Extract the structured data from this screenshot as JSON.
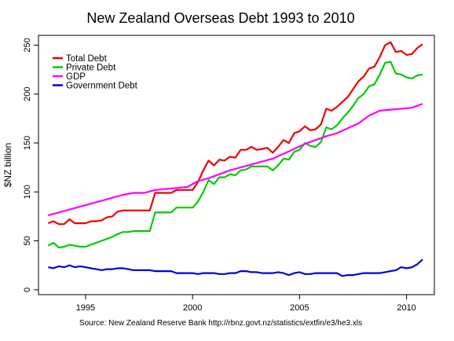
{
  "chart_data": {
    "type": "line",
    "title": "New Zealand Overseas Debt 1993 to 2010",
    "xlabel": "",
    "ylabel": "$NZ billion",
    "xlim": [
      1992.8,
      2011.3
    ],
    "ylim": [
      -5,
      260
    ],
    "xticks": [
      1995,
      2000,
      2005,
      2010
    ],
    "yticks": [
      0,
      50,
      100,
      150,
      200,
      250
    ],
    "grid": false,
    "legend_position": "top-left",
    "source": "Source: New Zealand Reserve Bank http://rbnz.govt.nz/statistics/extfin/e3/he3.xls",
    "series": [
      {
        "name": "Total Debt",
        "color": "#ee0000",
        "x": [
          1993.25,
          1993.5,
          1993.75,
          1994.0,
          1994.25,
          1994.5,
          1994.75,
          1995.0,
          1995.25,
          1995.5,
          1995.75,
          1996.0,
          1996.25,
          1996.5,
          1996.75,
          1997.0,
          1997.25,
          1997.5,
          1997.75,
          1998.0,
          1998.25,
          1998.5,
          1998.75,
          1999.0,
          1999.25,
          1999.5,
          1999.75,
          2000.0,
          2000.25,
          2000.5,
          2000.75,
          2001.0,
          2001.25,
          2001.5,
          2001.75,
          2002.0,
          2002.25,
          2002.5,
          2002.75,
          2003.0,
          2003.25,
          2003.5,
          2003.75,
          2004.0,
          2004.25,
          2004.5,
          2004.75,
          2005.0,
          2005.25,
          2005.5,
          2005.75,
          2006.0,
          2006.25,
          2006.5,
          2006.75,
          2007.0,
          2007.25,
          2007.5,
          2007.75,
          2008.0,
          2008.25,
          2008.5,
          2008.75,
          2009.0,
          2009.25,
          2009.5,
          2009.75,
          2010.0,
          2010.25,
          2010.5,
          2010.75
        ],
        "values": [
          68,
          70,
          67,
          67,
          72,
          68,
          68,
          68,
          70,
          70,
          71,
          74,
          75,
          80,
          81,
          81,
          81,
          81,
          81,
          81,
          99,
          99,
          99,
          99,
          102,
          102,
          102,
          102,
          110,
          122,
          132,
          127,
          133,
          132,
          136,
          135,
          143,
          143,
          146,
          143,
          144,
          145,
          140,
          146,
          153,
          150,
          160,
          162,
          167,
          163,
          164,
          169,
          185,
          183,
          187,
          192,
          197,
          205,
          213,
          218,
          226,
          228,
          238,
          250,
          253,
          243,
          244,
          240,
          241,
          247,
          251
        ]
      },
      {
        "name": "Private Debt",
        "color": "#00cc00",
        "x": [
          1993.25,
          1993.5,
          1993.75,
          1994.0,
          1994.25,
          1994.5,
          1994.75,
          1995.0,
          1995.25,
          1995.5,
          1995.75,
          1996.0,
          1996.25,
          1996.5,
          1996.75,
          1997.0,
          1997.25,
          1997.5,
          1997.75,
          1998.0,
          1998.25,
          1998.5,
          1998.75,
          1999.0,
          1999.25,
          1999.5,
          1999.75,
          2000.0,
          2000.25,
          2000.5,
          2000.75,
          2001.0,
          2001.25,
          2001.5,
          2001.75,
          2002.0,
          2002.25,
          2002.5,
          2002.75,
          2003.0,
          2003.25,
          2003.5,
          2003.75,
          2004.0,
          2004.25,
          2004.5,
          2004.75,
          2005.0,
          2005.25,
          2005.5,
          2005.75,
          2006.0,
          2006.25,
          2006.5,
          2006.75,
          2007.0,
          2007.25,
          2007.5,
          2007.75,
          2008.0,
          2008.25,
          2008.5,
          2008.75,
          2009.0,
          2009.25,
          2009.5,
          2009.75,
          2010.0,
          2010.25,
          2010.5,
          2010.75
        ],
        "values": [
          45,
          48,
          43,
          44,
          46,
          45,
          44,
          44,
          46,
          48,
          50,
          52,
          54,
          57,
          59,
          59,
          60,
          60,
          60,
          60,
          79,
          79,
          79,
          79,
          84,
          84,
          84,
          84,
          90,
          100,
          112,
          108,
          115,
          115,
          118,
          117,
          122,
          123,
          126,
          126,
          126,
          126,
          122,
          127,
          134,
          133,
          141,
          143,
          150,
          147,
          146,
          151,
          166,
          164,
          168,
          175,
          181,
          188,
          196,
          200,
          208,
          210,
          220,
          232,
          233,
          221,
          220,
          217,
          216,
          219,
          220
        ]
      },
      {
        "name": "GDP",
        "color": "#ff00ff",
        "x": [
          1993.25,
          1993.75,
          1994.25,
          1994.75,
          1995.25,
          1995.75,
          1996.25,
          1996.75,
          1997.25,
          1997.75,
          1998.25,
          1998.75,
          1999.25,
          1999.75,
          2000.25,
          2000.75,
          2001.25,
          2001.75,
          2002.25,
          2002.75,
          2003.25,
          2003.75,
          2004.25,
          2004.75,
          2005.25,
          2005.75,
          2006.25,
          2006.75,
          2007.25,
          2007.75,
          2008.25,
          2008.75,
          2009.25,
          2009.75,
          2010.25,
          2010.75
        ],
        "values": [
          76,
          79,
          82,
          85,
          88,
          91,
          94,
          97,
          99,
          99,
          102,
          103,
          104,
          105,
          111,
          114,
          118,
          122,
          125,
          128,
          131,
          134,
          139,
          144,
          149,
          153,
          157,
          160,
          165,
          170,
          178,
          183,
          184,
          185,
          186,
          190
        ]
      },
      {
        "name": "Government Debt",
        "color": "#0000dd",
        "x": [
          1993.25,
          1993.5,
          1993.75,
          1994.0,
          1994.25,
          1994.5,
          1994.75,
          1995.0,
          1995.25,
          1995.5,
          1995.75,
          1996.0,
          1996.25,
          1996.5,
          1996.75,
          1997.0,
          1997.25,
          1997.5,
          1997.75,
          1998.0,
          1998.25,
          1998.5,
          1998.75,
          1999.0,
          1999.25,
          1999.5,
          1999.75,
          2000.0,
          2000.25,
          2000.5,
          2000.75,
          2001.0,
          2001.25,
          2001.5,
          2001.75,
          2002.0,
          2002.25,
          2002.5,
          2002.75,
          2003.0,
          2003.25,
          2003.5,
          2003.75,
          2004.0,
          2004.25,
          2004.5,
          2004.75,
          2005.0,
          2005.25,
          2005.5,
          2005.75,
          2006.0,
          2006.25,
          2006.5,
          2006.75,
          2007.0,
          2007.25,
          2007.5,
          2007.75,
          2008.0,
          2008.25,
          2008.5,
          2008.75,
          2009.0,
          2009.25,
          2009.5,
          2009.75,
          2010.0,
          2010.25,
          2010.5,
          2010.75
        ],
        "values": [
          23,
          22,
          24,
          23,
          25,
          23,
          24,
          23,
          22,
          21,
          20,
          21,
          21,
          22,
          22,
          21,
          20,
          20,
          20,
          20,
          19,
          19,
          19,
          19,
          17,
          17,
          17,
          17,
          16,
          17,
          17,
          17,
          16,
          16,
          17,
          17,
          19,
          19,
          18,
          18,
          17,
          17,
          17,
          18,
          17,
          15,
          17,
          18,
          16,
          16,
          17,
          17,
          17,
          17,
          17,
          14,
          15,
          15,
          16,
          17,
          17,
          17,
          17,
          18,
          19,
          20,
          23,
          22,
          23,
          26,
          31
        ]
      }
    ]
  }
}
